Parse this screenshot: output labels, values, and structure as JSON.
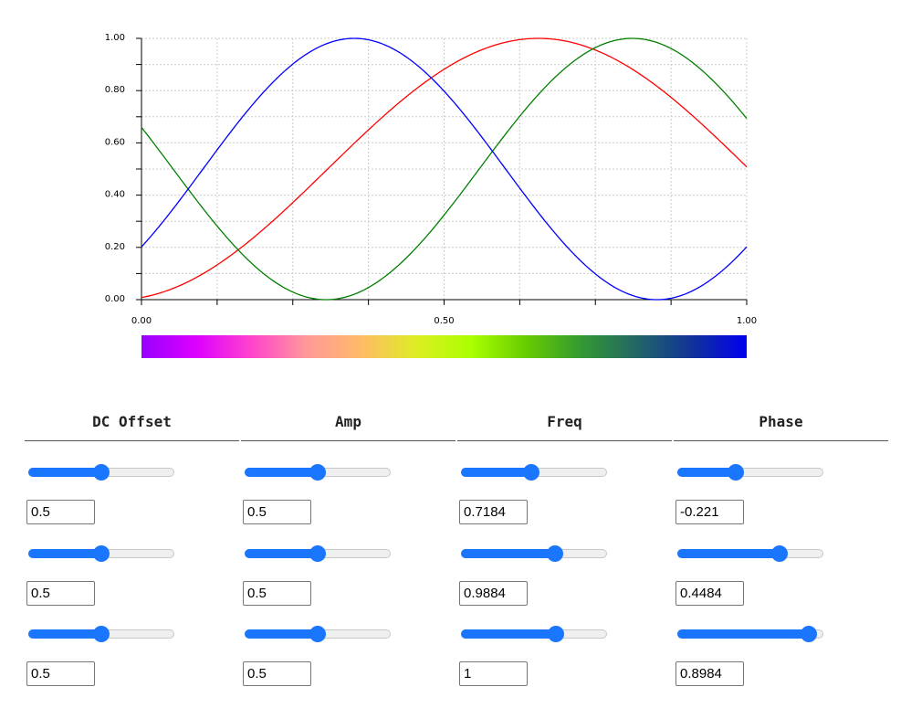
{
  "chart_data": {
    "type": "line",
    "xlim": [
      0,
      1
    ],
    "ylim": [
      0,
      1
    ],
    "x_ticks": [
      "0.00",
      "0.50",
      "1.00"
    ],
    "y_ticks": [
      "0.00",
      "0.20",
      "0.40",
      "0.60",
      "0.80",
      "1.00"
    ],
    "grid": true,
    "series": [
      {
        "color": "#ff0000",
        "dc": 0.5,
        "amp": 0.5,
        "freq": 0.7184,
        "phase": -0.221
      },
      {
        "color": "#008000",
        "dc": 0.5,
        "amp": 0.5,
        "freq": 0.9884,
        "phase": 0.4484
      },
      {
        "color": "#0000ff",
        "dc": 0.5,
        "amp": 0.5,
        "freq": 1,
        "phase": 0.8984
      }
    ],
    "colorbar": {
      "stops": [
        "#9900ff",
        "#dd00ff",
        "#ff44cc",
        "#ff9999",
        "#ffbb66",
        "#ddee22",
        "#aaff00",
        "#66cc00",
        "#339933",
        "#226666",
        "#113399",
        "#0000ee"
      ]
    }
  },
  "controls": {
    "headers": [
      "DC Offset",
      "Amp",
      "Freq",
      "Phase"
    ],
    "columns": [
      {
        "name": "dc-offset",
        "min": 0,
        "max": 1,
        "values": [
          "0.5",
          "0.5",
          "0.5"
        ]
      },
      {
        "name": "amp",
        "min": 0,
        "max": 1,
        "values": [
          "0.5",
          "0.5",
          "0.5"
        ]
      },
      {
        "name": "freq",
        "min": 0,
        "max": 1.5,
        "values": [
          "0.7184",
          "0.9884",
          "1"
        ]
      },
      {
        "name": "phase",
        "min": -1,
        "max": 1,
        "values": [
          "-0.221",
          "0.4484",
          "0.8984"
        ]
      }
    ],
    "accent_color": "#1a75ff"
  }
}
